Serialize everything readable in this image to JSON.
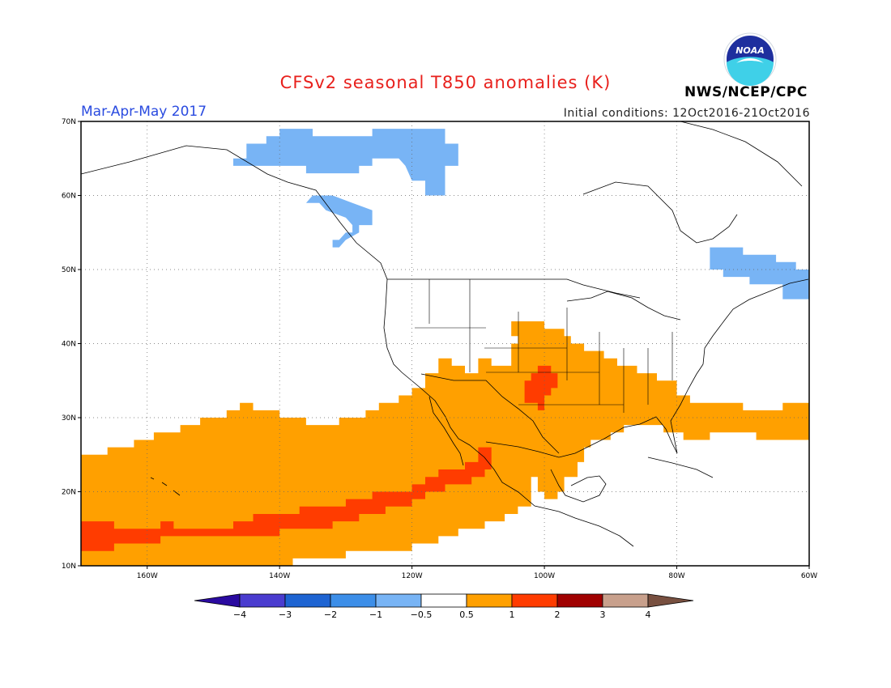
{
  "title": "CFSv2 seasonal T850 anomalies (K)",
  "season": "Mar-Apr-May 2017",
  "initial_conditions": "Initial conditions: 12Oct2016-21Oct2016",
  "org": "NWS/NCEP/CPC",
  "logo": {
    "icon": "noaa-logo",
    "text": "NOAA"
  },
  "map": {
    "projection": "cylindrical",
    "lon_range": [
      -170,
      -60
    ],
    "lat_range": [
      10,
      70
    ],
    "lon_ticks": [
      {
        "lon": -160,
        "label": "160W"
      },
      {
        "lon": -140,
        "label": "140W"
      },
      {
        "lon": -120,
        "label": "120W"
      },
      {
        "lon": -100,
        "label": "100W"
      },
      {
        "lon": -80,
        "label": "80W"
      },
      {
        "lon": -60,
        "label": "60W"
      }
    ],
    "lat_ticks": [
      {
        "lat": 10,
        "label": "10N"
      },
      {
        "lat": 20,
        "label": "20N"
      },
      {
        "lat": 30,
        "label": "30N"
      },
      {
        "lat": 40,
        "label": "40N"
      },
      {
        "lat": 50,
        "label": "50N"
      },
      {
        "lat": 60,
        "label": "60N"
      },
      {
        "lat": 70,
        "label": "70N"
      }
    ],
    "grid": "dotted"
  },
  "colorbar": {
    "levels": [
      "-4",
      "-3",
      "-2",
      "-1",
      "-0.5",
      "0.5",
      "1",
      "2",
      "3",
      "4"
    ],
    "colors": [
      "#2a0aa0",
      "#4a3ccf",
      "#1e64d2",
      "#3c8ee8",
      "#78b4f5",
      "#ffffff",
      "#ffa000",
      "#ff3c00",
      "#a00000",
      "#c8a08c",
      "#785040"
    ]
  },
  "anomaly_regions": [
    {
      "name": "Negative anomaly, Yukon / northwest Canada",
      "class": "-1 to -0.5",
      "color": "#78b4f5",
      "polygon": [
        [
          -140,
          69
        ],
        [
          -135,
          69
        ],
        [
          -135,
          68
        ],
        [
          -126,
          68
        ],
        [
          -126,
          69
        ],
        [
          -115,
          69
        ],
        [
          -115,
          67
        ],
        [
          -113,
          67
        ],
        [
          -113,
          64
        ],
        [
          -115,
          64
        ],
        [
          -115,
          60
        ],
        [
          -118,
          60
        ],
        [
          -118,
          62
        ],
        [
          -120,
          62
        ],
        [
          -121,
          64
        ],
        [
          -122,
          65
        ],
        [
          -126,
          65
        ],
        [
          -126,
          64
        ],
        [
          -128,
          64
        ],
        [
          -128,
          63
        ],
        [
          -136,
          63
        ],
        [
          -136,
          64
        ],
        [
          -147,
          64
        ],
        [
          -147,
          65
        ],
        [
          -145,
          65
        ],
        [
          -145,
          67
        ],
        [
          -142,
          67
        ],
        [
          -142,
          68
        ],
        [
          -140,
          68
        ]
      ]
    },
    {
      "name": "Negative anomaly, Alaska panhandle",
      "class": "-1 to -0.5",
      "color": "#78b4f5",
      "polygon": [
        [
          -136,
          59
        ],
        [
          -134,
          59
        ],
        [
          -133,
          58
        ],
        [
          -130,
          57
        ],
        [
          -129,
          56
        ],
        [
          -129,
          55
        ],
        [
          -130,
          55
        ],
        [
          -131,
          54
        ],
        [
          -132,
          54
        ],
        [
          -132,
          53
        ],
        [
          -131,
          53
        ],
        [
          -130,
          54
        ],
        [
          -128,
          55
        ],
        [
          -128,
          56
        ],
        [
          -126,
          56
        ],
        [
          -126,
          58
        ],
        [
          -129,
          59
        ],
        [
          -132,
          60
        ],
        [
          -135,
          60
        ]
      ]
    },
    {
      "name": "Negative anomaly, Quebec / Labrador / Newfoundland",
      "class": "-1 to -0.5",
      "color": "#78b4f5",
      "polygon": [
        [
          -75,
          52
        ],
        [
          -75,
          50
        ],
        [
          -73,
          50
        ],
        [
          -73,
          49
        ],
        [
          -69,
          49
        ],
        [
          -69,
          48
        ],
        [
          -64,
          48
        ],
        [
          -64,
          46
        ],
        [
          -60,
          46
        ],
        [
          -60,
          50
        ],
        [
          -62,
          50
        ],
        [
          -62,
          51
        ],
        [
          -65,
          51
        ],
        [
          -65,
          52
        ],
        [
          -70,
          52
        ],
        [
          -70,
          53
        ],
        [
          -75,
          53
        ]
      ]
    },
    {
      "name": "Positive anomaly, Pacific / Mexico / southern US / Atlantic",
      "class": "0.5 to 1",
      "color": "#ffa000",
      "polygon": [
        [
          -170,
          25
        ],
        [
          -166,
          25
        ],
        [
          -166,
          26
        ],
        [
          -162,
          26
        ],
        [
          -162,
          27
        ],
        [
          -159,
          27
        ],
        [
          -159,
          28
        ],
        [
          -155,
          28
        ],
        [
          -155,
          29
        ],
        [
          -152,
          29
        ],
        [
          -152,
          30
        ],
        [
          -148,
          30
        ],
        [
          -148,
          31
        ],
        [
          -146,
          31
        ],
        [
          -146,
          32
        ],
        [
          -144,
          32
        ],
        [
          -144,
          31
        ],
        [
          -140,
          31
        ],
        [
          -140,
          30
        ],
        [
          -136,
          30
        ],
        [
          -136,
          29
        ],
        [
          -131,
          29
        ],
        [
          -131,
          30
        ],
        [
          -127,
          30
        ],
        [
          -127,
          31
        ],
        [
          -125,
          31
        ],
        [
          -125,
          32
        ],
        [
          -122,
          32
        ],
        [
          -122,
          33
        ],
        [
          -120,
          33
        ],
        [
          -120,
          34
        ],
        [
          -118,
          34
        ],
        [
          -118,
          36
        ],
        [
          -116,
          36
        ],
        [
          -116,
          38
        ],
        [
          -114,
          38
        ],
        [
          -114,
          37
        ],
        [
          -112,
          37
        ],
        [
          -112,
          36
        ],
        [
          -110,
          36
        ],
        [
          -110,
          38
        ],
        [
          -108,
          38
        ],
        [
          -108,
          37
        ],
        [
          -105,
          37
        ],
        [
          -105,
          40
        ],
        [
          -104,
          40
        ],
        [
          -104,
          41
        ],
        [
          -105,
          41
        ],
        [
          -105,
          43
        ],
        [
          -100,
          43
        ],
        [
          -100,
          42
        ],
        [
          -97,
          42
        ],
        [
          -97,
          41
        ],
        [
          -96,
          41
        ],
        [
          -96,
          40
        ],
        [
          -94,
          40
        ],
        [
          -94,
          39
        ],
        [
          -91,
          39
        ],
        [
          -91,
          38
        ],
        [
          -89,
          38
        ],
        [
          -89,
          37
        ],
        [
          -86,
          37
        ],
        [
          -86,
          36
        ],
        [
          -83,
          36
        ],
        [
          -83,
          35
        ],
        [
          -80,
          35
        ],
        [
          -80,
          33
        ],
        [
          -78,
          33
        ],
        [
          -78,
          32
        ],
        [
          -70,
          32
        ],
        [
          -70,
          31
        ],
        [
          -64,
          31
        ],
        [
          -64,
          32
        ],
        [
          -60,
          32
        ],
        [
          -60,
          27
        ],
        [
          -68,
          27
        ],
        [
          -68,
          28
        ],
        [
          -75,
          28
        ],
        [
          -75,
          27
        ],
        [
          -79,
          27
        ],
        [
          -79,
          28
        ],
        [
          -82,
          28
        ],
        [
          -82,
          29
        ],
        [
          -88,
          29
        ],
        [
          -88,
          28
        ],
        [
          -90,
          28
        ],
        [
          -90,
          27
        ],
        [
          -93,
          27
        ],
        [
          -93,
          26
        ],
        [
          -94,
          26
        ],
        [
          -94,
          24
        ],
        [
          -95,
          24
        ],
        [
          -95,
          22
        ],
        [
          -97,
          22
        ],
        [
          -97,
          20
        ],
        [
          -98,
          20
        ],
        [
          -98,
          19
        ],
        [
          -100,
          19
        ],
        [
          -100,
          20
        ],
        [
          -101,
          20
        ],
        [
          -101,
          22
        ],
        [
          -102,
          22
        ],
        [
          -102,
          18
        ],
        [
          -104,
          18
        ],
        [
          -104,
          17
        ],
        [
          -106,
          17
        ],
        [
          -106,
          16
        ],
        [
          -109,
          16
        ],
        [
          -109,
          15
        ],
        [
          -113,
          15
        ],
        [
          -113,
          14
        ],
        [
          -116,
          14
        ],
        [
          -116,
          13
        ],
        [
          -120,
          13
        ],
        [
          -120,
          12
        ],
        [
          -130,
          12
        ],
        [
          -130,
          11
        ],
        [
          -138,
          11
        ],
        [
          -138,
          10
        ],
        [
          -170,
          10
        ]
      ]
    },
    {
      "name": "Positive anomaly, Texas / Oklahoma panhandle",
      "class": "1 to 2",
      "color": "#ff3c00",
      "polygon": [
        [
          -101,
          37
        ],
        [
          -99,
          37
        ],
        [
          -99,
          36
        ],
        [
          -98,
          36
        ],
        [
          -98,
          34
        ],
        [
          -99,
          34
        ],
        [
          -99,
          33
        ],
        [
          -100,
          33
        ],
        [
          -100,
          31
        ],
        [
          -101,
          31
        ],
        [
          -101,
          32
        ],
        [
          -103,
          32
        ],
        [
          -103,
          35
        ],
        [
          -102,
          35
        ],
        [
          -102,
          36
        ],
        [
          -101,
          36
        ]
      ]
    },
    {
      "name": "Positive anomaly, subtropical Pacific band",
      "class": "1 to 2",
      "color": "#ff3c00",
      "polygon": [
        [
          -170,
          16
        ],
        [
          -165,
          16
        ],
        [
          -165,
          15
        ],
        [
          -158,
          15
        ],
        [
          -158,
          16
        ],
        [
          -156,
          16
        ],
        [
          -156,
          15
        ],
        [
          -147,
          15
        ],
        [
          -147,
          16
        ],
        [
          -144,
          16
        ],
        [
          -144,
          17
        ],
        [
          -137,
          17
        ],
        [
          -137,
          18
        ],
        [
          -130,
          18
        ],
        [
          -130,
          19
        ],
        [
          -126,
          19
        ],
        [
          -126,
          20
        ],
        [
          -120,
          20
        ],
        [
          -120,
          21
        ],
        [
          -118,
          21
        ],
        [
          -118,
          22
        ],
        [
          -116,
          22
        ],
        [
          -116,
          23
        ],
        [
          -112,
          23
        ],
        [
          -112,
          24
        ],
        [
          -110,
          24
        ],
        [
          -110,
          26
        ],
        [
          -108,
          26
        ],
        [
          -108,
          23
        ],
        [
          -109,
          23
        ],
        [
          -109,
          22
        ],
        [
          -111,
          22
        ],
        [
          -111,
          21
        ],
        [
          -115,
          21
        ],
        [
          -115,
          20
        ],
        [
          -118,
          20
        ],
        [
          -118,
          19
        ],
        [
          -120,
          19
        ],
        [
          -120,
          18
        ],
        [
          -124,
          18
        ],
        [
          -124,
          17
        ],
        [
          -128,
          17
        ],
        [
          -128,
          16
        ],
        [
          -132,
          16
        ],
        [
          -132,
          15
        ],
        [
          -140,
          15
        ],
        [
          -140,
          14
        ],
        [
          -158,
          14
        ],
        [
          -158,
          13
        ],
        [
          -165,
          13
        ],
        [
          -165,
          12
        ],
        [
          -170,
          12
        ]
      ]
    }
  ]
}
